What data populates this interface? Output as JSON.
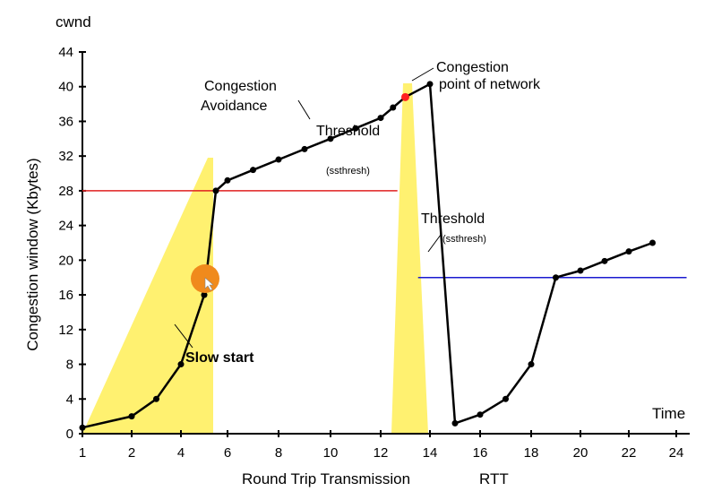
{
  "chart_data": {
    "type": "line",
    "y_axis_top_label": "cwnd",
    "ylabel": "Congestion window (Kbytes)",
    "xlabel": "Round Trip Transmission",
    "xlabel_suffix": "RTT",
    "x_end_label": "Time",
    "xlim": [
      1,
      24.2
    ],
    "ylim": [
      0,
      44
    ],
    "x_ticks": [
      1,
      2,
      4,
      6,
      8,
      10,
      12,
      14,
      16,
      18,
      20,
      22,
      24
    ],
    "y_ticks": [
      0,
      4,
      8,
      12,
      16,
      20,
      24,
      28,
      32,
      36,
      40,
      44
    ],
    "grid": false,
    "series": [
      {
        "color": "#000000",
        "points": [
          [
            1,
            0.7
          ],
          [
            1.95,
            2
          ],
          [
            2.95,
            4
          ],
          [
            3.95,
            8
          ],
          [
            4.95,
            16
          ],
          [
            5.95,
            28
          ],
          [
            6.95,
            29.2
          ],
          [
            7.95,
            30.4
          ],
          [
            8.95,
            31.6
          ],
          [
            9.95,
            32.8
          ],
          [
            10.95,
            34
          ],
          [
            11.95,
            35.2
          ],
          [
            12.95,
            36.4
          ],
          [
            13.95,
            37.6
          ],
          [
            14.95,
            38.8
          ],
          [
            15.95,
            40.3
          ],
          [
            16.95,
            1.2
          ],
          [
            17.95,
            2.2
          ],
          [
            18.95,
            4
          ],
          [
            19.95,
            8
          ],
          [
            20.95,
            18
          ],
          [
            21.95,
            18.8
          ],
          [
            22.95,
            19.9
          ],
          [
            23.95,
            21
          ],
          [
            24.95,
            22
          ]
        ]
      }
    ],
    "thresholds": [
      {
        "color": "#e02020",
        "y": 28,
        "x_start": 1,
        "x_end": 13.2
      },
      {
        "color": "#1a1ad0",
        "y": 18,
        "x_start": 14,
        "x_end": 24.4
      }
    ],
    "shaded_regions_color": "#fff170",
    "annotations": {
      "congestion_avoidance_1": "Congestion",
      "congestion_avoidance_2": "Avoidance",
      "congestion_point_1": "Congestion",
      "congestion_point_2": "point of network",
      "threshold_1": "Threshold",
      "ssthresh_1": "(ssthresh)",
      "threshold_2": "Threshold",
      "ssthresh_2": "(ssthresh)",
      "slow_start": "Slow start"
    },
    "peak_marker_color": "#ff2020",
    "cursor_color": "#f08a1c"
  }
}
